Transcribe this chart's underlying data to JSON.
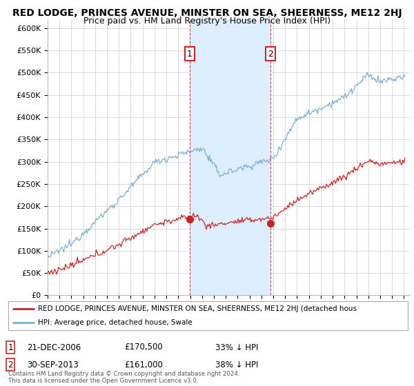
{
  "title": "RED LODGE, PRINCES AVENUE, MINSTER ON SEA, SHEERNESS, ME12 2HJ",
  "subtitle": "Price paid vs. HM Land Registry's House Price Index (HPI)",
  "title_fontsize": 10,
  "subtitle_fontsize": 9,
  "ylabel_ticks": [
    "£0",
    "£50K",
    "£100K",
    "£150K",
    "£200K",
    "£250K",
    "£300K",
    "£350K",
    "£400K",
    "£450K",
    "£500K",
    "£550K",
    "£600K"
  ],
  "ytick_values": [
    0,
    50000,
    100000,
    150000,
    200000,
    250000,
    300000,
    350000,
    400000,
    450000,
    500000,
    550000,
    600000
  ],
  "ylim": [
    0,
    620000
  ],
  "xlim_start": 1995.0,
  "xlim_end": 2025.5,
  "xtick_years": [
    1995,
    1996,
    1997,
    1998,
    1999,
    2000,
    2001,
    2002,
    2003,
    2004,
    2005,
    2006,
    2007,
    2008,
    2009,
    2010,
    2011,
    2012,
    2013,
    2014,
    2015,
    2016,
    2017,
    2018,
    2019,
    2020,
    2021,
    2022,
    2023,
    2024,
    2025
  ],
  "hpi_color": "#7bafd4",
  "price_color": "#cc2222",
  "shade_color": "#ddeeff",
  "sale1_x": 2006.97,
  "sale1_y": 170500,
  "sale1_label": "1",
  "sale1_date": "21-DEC-2006",
  "sale1_price": "£170,500",
  "sale1_pct": "33% ↓ HPI",
  "sale2_x": 2013.75,
  "sale2_y": 161000,
  "sale2_label": "2",
  "sale2_date": "30-SEP-2013",
  "sale2_price": "£161,000",
  "sale2_pct": "38% ↓ HPI",
  "legend_red": "RED LODGE, PRINCES AVENUE, MINSTER ON SEA, SHEERNESS, ME12 2HJ (detached hous",
  "legend_blue": "HPI: Average price, detached house, Swale",
  "footnote": "Contains HM Land Registry data © Crown copyright and database right 2024.\nThis data is licensed under the Open Government Licence v3.0.",
  "vline1_x": 2006.97,
  "vline2_x": 2013.75,
  "background_color": "#ffffff",
  "plot_bg_color": "#ffffff",
  "grid_color": "#cccccc"
}
